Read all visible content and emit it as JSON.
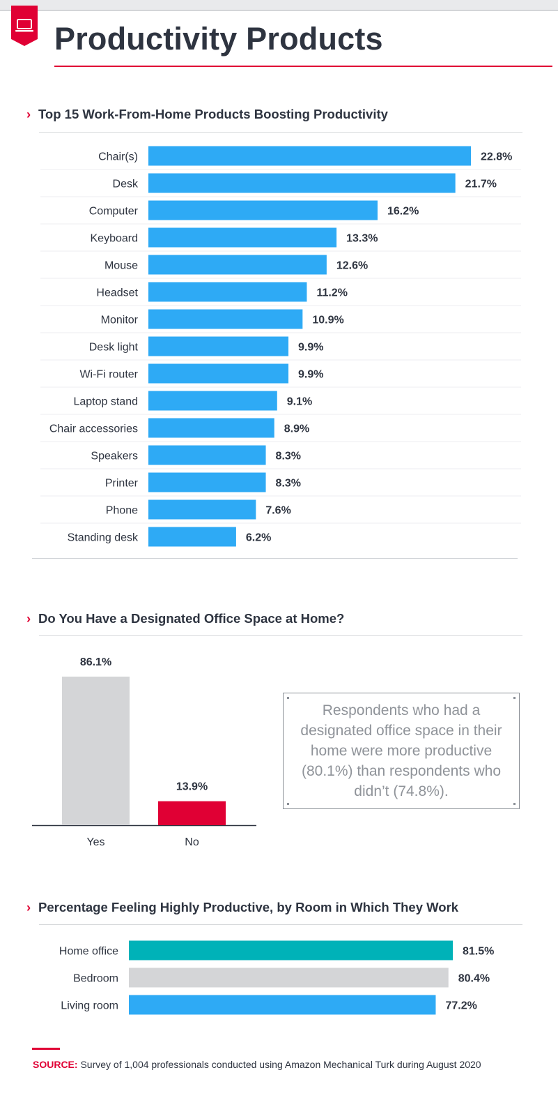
{
  "page": {
    "title": "Productivity Products"
  },
  "colors": {
    "accent": "#e00034",
    "blue": "#2eaaf5",
    "teal": "#00b2b8",
    "gray": "#d4d5d7",
    "text": "#2e3440"
  },
  "sections": {
    "products": {
      "title": "Top 15 Work-From-Home Products Boosting Productivity"
    },
    "office_space": {
      "title": "Do You Have a Designated Office Space at Home?"
    },
    "rooms": {
      "title": "Percentage Feeling Highly Productive, by Room in Which They Work"
    }
  },
  "callout": {
    "text": "Respondents who had a designated office space in their home were more productive (80.1%) than respondents who didn’t (74.8%)."
  },
  "source": {
    "label": "SOURCE:",
    "text": "Survey of 1,004 professionals conducted using Amazon Mechanical Turk during August 2020"
  },
  "icons": {
    "badge": "laptop-icon",
    "section_marker": "chevron-right-icon"
  },
  "chart_data": [
    {
      "type": "bar",
      "orientation": "horizontal",
      "title": "Top 15 Work-From-Home Products Boosting Productivity",
      "categories": [
        "Chair(s)",
        "Desk",
        "Computer",
        "Keyboard",
        "Mouse",
        "Headset",
        "Monitor",
        "Desk light",
        "Wi-Fi router",
        "Laptop stand",
        "Chair accessories",
        "Speakers",
        "Printer",
        "Phone",
        "Standing desk"
      ],
      "values": [
        22.8,
        21.7,
        16.2,
        13.3,
        12.6,
        11.2,
        10.9,
        9.9,
        9.9,
        9.1,
        8.9,
        8.3,
        8.3,
        7.6,
        6.2
      ],
      "value_labels": [
        "22.8%",
        "21.7%",
        "16.2%",
        "13.3%",
        "12.6%",
        "11.2%",
        "10.9%",
        "9.9%",
        "9.9%",
        "9.1%",
        "8.9%",
        "8.3%",
        "8.3%",
        "7.6%",
        "6.2%"
      ],
      "unit": "%",
      "color": "#2eaaf5",
      "grid": false
    },
    {
      "type": "bar",
      "orientation": "vertical",
      "title": "Do You Have a Designated Office Space at Home?",
      "categories": [
        "Yes",
        "No"
      ],
      "values": [
        86.1,
        13.9
      ],
      "value_labels": [
        "86.1%",
        "13.9%"
      ],
      "unit": "%",
      "colors": [
        "#d4d5d7",
        "#e00034"
      ],
      "grid": false
    },
    {
      "type": "bar",
      "orientation": "horizontal",
      "title": "Percentage Feeling Highly Productive, by Room in Which They Work",
      "categories": [
        "Home office",
        "Bedroom",
        "Living room"
      ],
      "values": [
        81.5,
        80.4,
        77.2
      ],
      "value_labels": [
        "81.5%",
        "80.4%",
        "77.2%"
      ],
      "unit": "%",
      "colors": [
        "#00b2b8",
        "#d4d5d7",
        "#2eaaf5"
      ],
      "grid": false
    }
  ]
}
